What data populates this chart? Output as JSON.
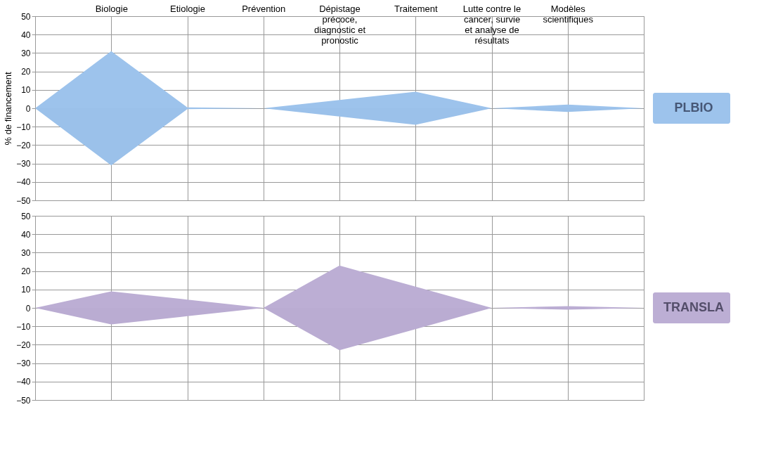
{
  "chart_data": [
    {
      "type": "area",
      "ylabel": "% de financement",
      "categories": [
        null,
        "Biologie",
        "Etiologie",
        "Prévention",
        "Dépistage précoce, diagnostic et pronostic",
        "Traitement",
        "Lutte contre le cancer, survie et analyse de résultats",
        "Modèles scientifiques",
        null
      ],
      "series": [
        {
          "name": "PLBIO",
          "color": "#9dc3ec",
          "values": [
            0,
            31,
            0.5,
            0,
            4.5,
            9,
            0,
            2,
            0
          ]
        },
        {
          "color": "#9bc1ea",
          "values": [
            0,
            -31,
            -0.5,
            0,
            -4.5,
            -9,
            0,
            -2,
            0
          ]
        }
      ],
      "ylim": [
        -50,
        50
      ],
      "yticks": [
        -50,
        -40,
        -30,
        -20,
        -10,
        0,
        10,
        20,
        30,
        40,
        50
      ],
      "grid": true
    },
    {
      "type": "area",
      "categories": [
        null,
        "Biologie",
        "Etiologie",
        "Prévention",
        "Dépistage précoce, diagnostic et pronostic",
        "Traitement",
        "Lutte contre le cancer, survie et analyse de résultats",
        "Modèles scientifiques",
        null
      ],
      "series": [
        {
          "name": "TRANSLA",
          "color": "#bcaed4",
          "values": [
            0,
            9,
            4.5,
            0,
            23,
            11.5,
            0,
            1,
            0
          ]
        },
        {
          "color": "#baacd2",
          "values": [
            0,
            -9,
            -4.5,
            0,
            -23,
            -11.5,
            0,
            -1,
            0
          ]
        }
      ],
      "ylim": [
        -50,
        50
      ],
      "yticks": [
        -50,
        -40,
        -30,
        -20,
        -10,
        0,
        10,
        20,
        30,
        40,
        50
      ],
      "grid": true,
      "tick_labels": "y"
    }
  ]
}
